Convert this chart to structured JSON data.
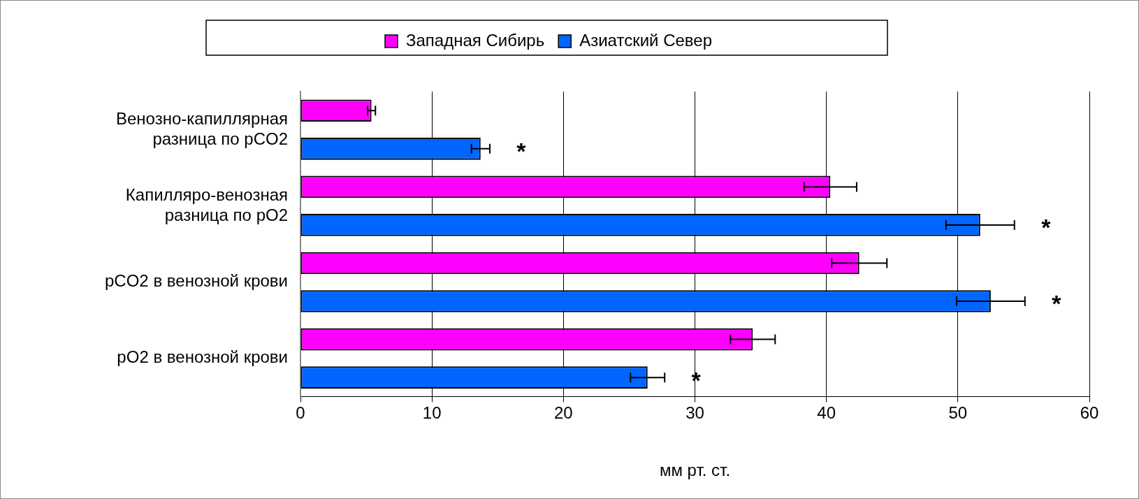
{
  "chart_data": {
    "type": "bar",
    "orientation": "horizontal",
    "xlabel": "мм рт. ст.",
    "categories": [
      "Венозно-капиллярная\nразница по pCO2",
      "Капилляро-венозная\nразница по pO2",
      "pCO2 в венозной крови",
      "pO2 в венозной крови"
    ],
    "series": [
      {
        "name": "Западная Сибирь",
        "color": "#ff00ff",
        "values": [
          5.4,
          40.3,
          42.5,
          34.4
        ],
        "errors": [
          0.3,
          2.0,
          2.1,
          1.7
        ]
      },
      {
        "name": "Азиатский Север",
        "color": "#0066ff",
        "values": [
          13.7,
          51.7,
          52.5,
          26.4
        ],
        "errors": [
          0.7,
          2.6,
          2.6,
          1.3
        ]
      }
    ],
    "xlim": [
      0,
      60
    ],
    "xticks": [
      0,
      10,
      20,
      30,
      40,
      50,
      60
    ],
    "grid": "x",
    "legend": "top",
    "annotations": [
      "*",
      "*",
      "*",
      "*"
    ]
  }
}
